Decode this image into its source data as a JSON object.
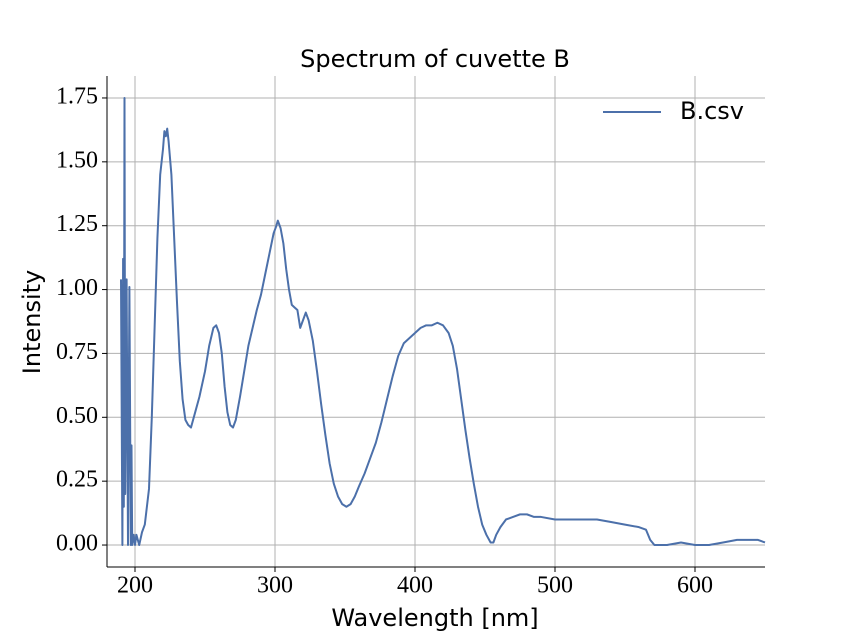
{
  "chart_data": {
    "type": "line",
    "title": "Spectrum of cuvette B",
    "xlabel": "Wavelength [nm]",
    "ylabel": "Intensity",
    "xlim": [
      180,
      650
    ],
    "ylim": [
      -0.086,
      1.836
    ],
    "xticks": [
      200,
      300,
      400,
      500,
      600
    ],
    "yticks": [
      {
        "value": 0,
        "label": "0.00"
      },
      {
        "value": 0.25,
        "label": "0.25"
      },
      {
        "value": 0.5,
        "label": "0.50"
      },
      {
        "value": 0.75,
        "label": "0.75"
      },
      {
        "value": 1,
        "label": "1.00"
      },
      {
        "value": 1.25,
        "label": "1.25"
      },
      {
        "value": 1.5,
        "label": "1.50"
      },
      {
        "value": 1.75,
        "label": "1.75"
      }
    ],
    "grid": true,
    "legend": "upper right",
    "x": [
      190,
      191,
      191.5,
      192,
      192.5,
      193,
      194,
      195,
      196,
      197,
      197.5,
      198,
      199,
      200,
      201,
      203,
      205,
      207,
      210,
      212,
      214,
      216,
      218,
      220,
      221,
      222,
      223,
      224,
      226,
      228,
      230,
      232,
      234,
      236,
      238,
      240,
      243,
      246,
      250,
      253,
      256,
      258,
      260,
      262,
      264,
      266,
      268,
      270,
      272,
      275,
      278,
      281,
      284,
      287,
      290,
      293,
      296,
      299,
      301,
      302,
      304,
      306,
      308,
      310,
      312,
      314,
      316,
      318,
      320,
      322,
      324,
      327,
      330,
      333,
      336,
      339,
      342,
      345,
      348,
      351,
      354,
      357,
      360,
      364,
      368,
      372,
      376,
      380,
      384,
      388,
      392,
      396,
      400,
      404,
      408,
      412,
      416,
      420,
      424,
      427,
      430,
      433,
      436,
      439,
      442,
      445,
      448,
      451,
      454,
      456,
      458,
      461,
      465,
      470,
      475,
      480,
      485,
      490,
      500,
      510,
      520,
      530,
      540,
      550,
      560,
      565,
      568,
      571,
      580,
      590,
      600,
      610,
      620,
      630,
      640,
      645,
      650
    ],
    "series": [
      {
        "name": "B.csv",
        "color": "#4c70aa",
        "values": [
          1.04,
          0.0,
          1.12,
          0.15,
          1.75,
          0.2,
          1.04,
          0.0,
          1.01,
          0.0,
          0.39,
          0.0,
          0.04,
          0.0,
          0.04,
          0.0,
          0.05,
          0.08,
          0.22,
          0.5,
          0.85,
          1.2,
          1.45,
          1.55,
          1.62,
          1.6,
          1.63,
          1.58,
          1.45,
          1.2,
          0.95,
          0.72,
          0.57,
          0.49,
          0.47,
          0.46,
          0.52,
          0.58,
          0.68,
          0.78,
          0.85,
          0.86,
          0.83,
          0.75,
          0.62,
          0.52,
          0.47,
          0.46,
          0.49,
          0.58,
          0.68,
          0.78,
          0.85,
          0.92,
          0.98,
          1.06,
          1.14,
          1.22,
          1.25,
          1.27,
          1.24,
          1.18,
          1.08,
          1.0,
          0.94,
          0.93,
          0.92,
          0.85,
          0.88,
          0.91,
          0.88,
          0.8,
          0.68,
          0.55,
          0.43,
          0.32,
          0.24,
          0.19,
          0.16,
          0.15,
          0.16,
          0.19,
          0.23,
          0.28,
          0.34,
          0.4,
          0.48,
          0.57,
          0.66,
          0.74,
          0.79,
          0.81,
          0.83,
          0.85,
          0.86,
          0.86,
          0.87,
          0.86,
          0.83,
          0.78,
          0.69,
          0.57,
          0.45,
          0.34,
          0.24,
          0.15,
          0.08,
          0.04,
          0.01,
          0.01,
          0.04,
          0.07,
          0.1,
          0.11,
          0.12,
          0.12,
          0.11,
          0.11,
          0.1,
          0.1,
          0.1,
          0.1,
          0.09,
          0.08,
          0.07,
          0.06,
          0.02,
          0.0,
          0.0,
          0.01,
          0.0,
          0.0,
          0.01,
          0.02,
          0.02,
          0.02,
          0.01
        ]
      }
    ]
  }
}
